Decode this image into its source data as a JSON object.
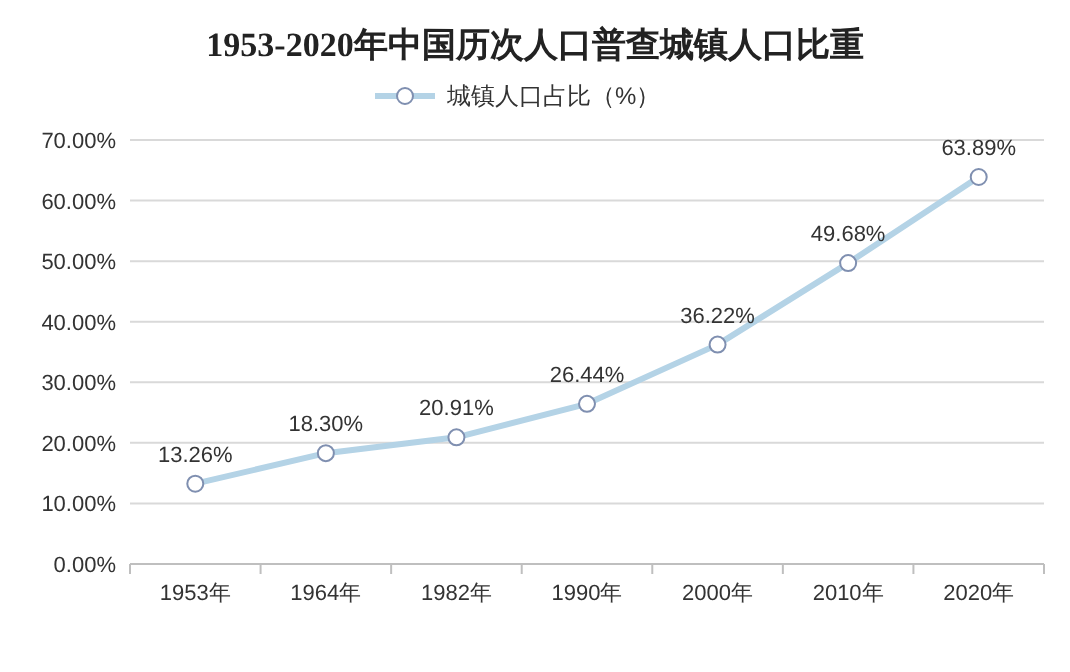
{
  "chart_data": {
    "type": "line",
    "title": "1953-2020年中国历次人口普查城镇人口比重",
    "categories": [
      "1953年",
      "1964年",
      "1982年",
      "1990年",
      "2000年",
      "2010年",
      "2020年"
    ],
    "series": [
      {
        "name": "城镇人口占比（%）",
        "color": "#b4d3e6",
        "values": [
          13.26,
          18.3,
          20.91,
          26.44,
          36.22,
          49.68,
          63.89
        ],
        "value_labels": [
          "13.26%",
          "18.30%",
          "20.91%",
          "26.44%",
          "36.22%",
          "49.68%",
          "63.89%"
        ]
      }
    ],
    "ylim": [
      0,
      70
    ],
    "yticks": [
      {
        "value": 0,
        "label": "0.00%"
      },
      {
        "value": 10,
        "label": "10.00%"
      },
      {
        "value": 20,
        "label": "20.00%"
      },
      {
        "value": 30,
        "label": "30.00%"
      },
      {
        "value": 40,
        "label": "40.00%"
      },
      {
        "value": 50,
        "label": "50.00%"
      },
      {
        "value": 60,
        "label": "60.00%"
      },
      {
        "value": 70,
        "label": "70.00%"
      }
    ],
    "grid": "y",
    "legend": "top",
    "marker": "circle",
    "line_style": "solid"
  }
}
